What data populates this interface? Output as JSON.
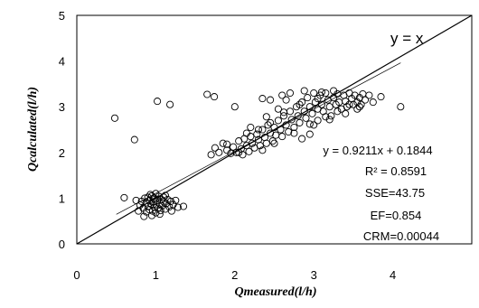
{
  "chart_data": {
    "type": "scatter",
    "xlabel": "Qmeasured(l/h)",
    "ylabel": "Qcalculated(l/h)",
    "xlim": [
      0,
      5
    ],
    "ylim": [
      0,
      5
    ],
    "x_ticks": [
      "0",
      "1",
      "2",
      "3",
      "4"
    ],
    "y_ticks": [
      "0",
      "1",
      "2",
      "3",
      "4",
      "5"
    ],
    "grid": false,
    "reference_line": {
      "label": "y = x",
      "slope": 1,
      "intercept": 0
    },
    "trendline": {
      "label": "y = 0.9211x + 0.1844",
      "slope": 0.9211,
      "intercept": 0.1844,
      "x_range": [
        0.5,
        4.1
      ]
    },
    "annotations": {
      "equation": "y = 0.9211x + 0.1844",
      "r2": "R² = 0.8591",
      "sse": "SSE=43.75",
      "ef": "EF=0.854",
      "crm": "CRM=0.00044"
    },
    "points": [
      [
        0.48,
        2.75
      ],
      [
        0.73,
        2.28
      ],
      [
        1.02,
        3.12
      ],
      [
        1.18,
        3.05
      ],
      [
        1.65,
        3.27
      ],
      [
        1.74,
        3.22
      ],
      [
        2.0,
        3.0
      ],
      [
        2.35,
        3.18
      ],
      [
        2.45,
        3.15
      ],
      [
        2.2,
        2.55
      ],
      [
        4.1,
        3.0
      ],
      [
        3.85,
        3.22
      ],
      [
        0.6,
        1.01
      ],
      [
        0.75,
        0.95
      ],
      [
        1.35,
        0.82
      ],
      [
        0.78,
        0.72
      ],
      [
        0.8,
        0.85
      ],
      [
        0.82,
        0.93
      ],
      [
        0.84,
        0.78
      ],
      [
        0.86,
        1.0
      ],
      [
        0.88,
        0.7
      ],
      [
        0.88,
        0.9
      ],
      [
        0.9,
        0.82
      ],
      [
        0.9,
        1.02
      ],
      [
        0.92,
        0.75
      ],
      [
        0.92,
        0.95
      ],
      [
        0.94,
        0.87
      ],
      [
        0.95,
        1.05
      ],
      [
        0.96,
        0.72
      ],
      [
        0.97,
        0.92
      ],
      [
        0.98,
        0.8
      ],
      [
        0.98,
        1.0
      ],
      [
        1.0,
        0.86
      ],
      [
        1.0,
        0.68
      ],
      [
        1.02,
        0.95
      ],
      [
        1.03,
        0.78
      ],
      [
        1.04,
        1.04
      ],
      [
        1.05,
        0.88
      ],
      [
        1.06,
        0.73
      ],
      [
        1.07,
        0.97
      ],
      [
        1.08,
        0.83
      ],
      [
        1.1,
        0.92
      ],
      [
        1.1,
        1.02
      ],
      [
        1.12,
        0.76
      ],
      [
        1.13,
        0.88
      ],
      [
        1.15,
        0.97
      ],
      [
        1.17,
        0.81
      ],
      [
        1.19,
        0.93
      ],
      [
        1.2,
        0.72
      ],
      [
        1.22,
        0.86
      ],
      [
        1.25,
        0.95
      ],
      [
        1.28,
        0.8
      ],
      [
        0.85,
        0.6
      ],
      [
        0.95,
        0.62
      ],
      [
        1.05,
        0.65
      ],
      [
        0.93,
        1.08
      ],
      [
        1.0,
        1.1
      ],
      [
        1.12,
        1.06
      ],
      [
        1.7,
        1.95
      ],
      [
        1.75,
        2.1
      ],
      [
        1.8,
        2.0
      ],
      [
        1.85,
        2.2
      ],
      [
        1.9,
        2.05
      ],
      [
        1.95,
        1.98
      ],
      [
        1.98,
        2.12
      ],
      [
        2.02,
        2.0
      ],
      [
        2.05,
        2.25
      ],
      [
        2.08,
        2.08
      ],
      [
        2.1,
        1.95
      ],
      [
        2.12,
        2.3
      ],
      [
        2.15,
        2.15
      ],
      [
        2.18,
        2.02
      ],
      [
        2.2,
        2.35
      ],
      [
        2.22,
        2.2
      ],
      [
        2.25,
        2.1
      ],
      [
        2.28,
        2.4
      ],
      [
        2.3,
        2.28
      ],
      [
        2.32,
        2.15
      ],
      [
        2.35,
        2.5
      ],
      [
        2.38,
        2.33
      ],
      [
        2.4,
        2.2
      ],
      [
        2.42,
        2.6
      ],
      [
        2.45,
        2.42
      ],
      [
        2.48,
        2.25
      ],
      [
        2.5,
        2.55
      ],
      [
        2.52,
        2.38
      ],
      [
        2.55,
        2.7
      ],
      [
        2.58,
        2.5
      ],
      [
        2.6,
        2.35
      ],
      [
        2.62,
        2.8
      ],
      [
        2.65,
        2.6
      ],
      [
        2.68,
        2.45
      ],
      [
        2.7,
        2.9
      ],
      [
        2.72,
        2.72
      ],
      [
        2.75,
        2.55
      ],
      [
        2.78,
        3.0
      ],
      [
        2.8,
        2.8
      ],
      [
        2.82,
        2.65
      ],
      [
        2.85,
        3.1
      ],
      [
        2.88,
        2.9
      ],
      [
        2.9,
        2.75
      ],
      [
        2.92,
        3.2
      ],
      [
        2.95,
        3.0
      ],
      [
        2.98,
        2.85
      ],
      [
        3.0,
        3.3
      ],
      [
        3.02,
        3.1
      ],
      [
        3.05,
        2.95
      ],
      [
        3.08,
        3.25
      ],
      [
        3.1,
        3.05
      ],
      [
        3.12,
        2.9
      ],
      [
        3.15,
        3.3
      ],
      [
        3.18,
        3.15
      ],
      [
        3.2,
        3.0
      ],
      [
        3.22,
        2.8
      ],
      [
        3.25,
        3.2
      ],
      [
        3.28,
        3.05
      ],
      [
        3.3,
        3.28
      ],
      [
        3.32,
        3.1
      ],
      [
        3.35,
        2.95
      ],
      [
        3.38,
        3.25
      ],
      [
        3.4,
        3.12
      ],
      [
        3.42,
        3.0
      ],
      [
        3.45,
        3.3
      ],
      [
        3.48,
        3.18
      ],
      [
        3.5,
        3.05
      ],
      [
        3.52,
        3.25
      ],
      [
        3.55,
        3.1
      ],
      [
        3.58,
        3.2
      ],
      [
        3.6,
        3.05
      ],
      [
        3.62,
        3.28
      ],
      [
        3.65,
        3.15
      ],
      [
        3.7,
        3.25
      ],
      [
        3.75,
        3.1
      ],
      [
        3.58,
        3.0
      ],
      [
        2.6,
        3.25
      ],
      [
        2.7,
        3.3
      ],
      [
        2.95,
        2.4
      ],
      [
        3.05,
        2.7
      ],
      [
        3.1,
        3.32
      ],
      [
        2.85,
        2.3
      ],
      [
        2.55,
        2.95
      ],
      [
        2.4,
        2.78
      ],
      [
        2.65,
        3.15
      ],
      [
        2.88,
        3.35
      ],
      [
        3.0,
        2.6
      ],
      [
        3.2,
        2.72
      ],
      [
        3.4,
        2.85
      ],
      [
        2.3,
        2.5
      ],
      [
        2.15,
        2.42
      ],
      [
        2.05,
        2.0
      ],
      [
        1.9,
        2.18
      ],
      [
        2.35,
        2.05
      ],
      [
        2.5,
        2.2
      ],
      [
        2.75,
        2.42
      ],
      [
        2.95,
        2.62
      ],
      [
        3.15,
        2.78
      ],
      [
        3.3,
        2.9
      ],
      [
        2.45,
        2.65
      ],
      [
        2.62,
        2.88
      ],
      [
        2.82,
        3.05
      ],
      [
        3.05,
        3.18
      ],
      [
        3.25,
        3.35
      ],
      [
        3.45,
        3.05
      ],
      [
        3.55,
        2.95
      ]
    ]
  }
}
